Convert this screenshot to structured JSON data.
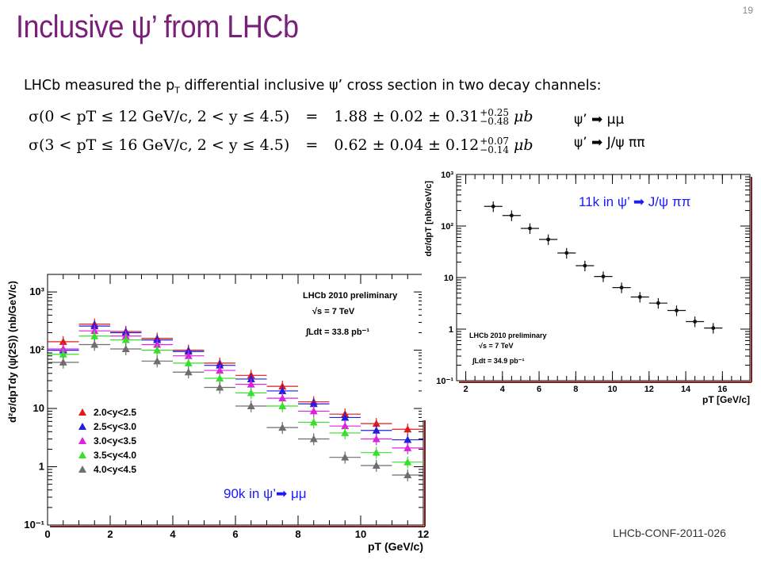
{
  "slide": {
    "number": "19",
    "title": "Inclusive ψ’ from LHCb",
    "intro_before_sub": "LHCb measured the p",
    "intro_sub": "T",
    "intro_after_sub": " differential inclusive ψ’ cross section in two decay channels:",
    "formula1_lhs": "σ(0 < pT ≤ 12 GeV/c, 2 < y ≤ 4.5)",
    "formula1_eq": "=",
    "formula1_value": "1.88 ± 0.02 ± 0.31",
    "formula1_up": "+0.25",
    "formula1_down": "−0.48",
    "formula1_unit": "μb",
    "formula2_lhs": "σ(3 < pT ≤ 16 GeV/c, 2 < y ≤ 4.5)",
    "formula2_eq": "=",
    "formula2_value": "0.62 ± 0.04 ± 0.12",
    "formula2_up": "+0.07",
    "formula2_down": "−0.14",
    "formula2_unit": "μb",
    "channel1": "ψ’ ➡ μμ",
    "channel2": "ψ’ ➡ J/ψ ππ",
    "conf_note": "LHCb-CONF-2011-026"
  },
  "colors": {
    "title": "#7a1f7a",
    "annotation_blue": "#1a1aff"
  },
  "chart_data": [
    {
      "type": "scatter",
      "plot": "left",
      "annotation": "90k in ψ’➡ μμ",
      "xlabel": "pT (GeV/c)",
      "ylabel": "d²σ/dpTdy (ψ(2S)) (nb/GeV/c)",
      "xlim": [
        0,
        12
      ],
      "ylim": [
        0.1,
        2000
      ],
      "log_y": true,
      "x_ticks": [
        "0",
        "2",
        "4",
        "6",
        "8",
        "10",
        "12"
      ],
      "y_ticks": [
        "10⁻¹",
        "1",
        "10",
        "10²",
        "10³"
      ],
      "legend_position": "lower-left",
      "info_title": "LHCb 2010 preliminary",
      "info_energy": "√s = 7 TeV",
      "info_lumi": "∫Ldt = 33.8 pb⁻¹",
      "x": [
        0.5,
        1.5,
        2.5,
        3.5,
        4.5,
        5.5,
        6.5,
        7.5,
        8.5,
        9.5,
        10.5,
        11.5
      ],
      "x_err": 0.5,
      "series": [
        {
          "name": "2.0<y<2.5",
          "color": "#e31a1c",
          "values": [
            140,
            280,
            210,
            160,
            100,
            60,
            37,
            24,
            13,
            8,
            5.5,
            4.4
          ]
        },
        {
          "name": "2.5<y<3.0",
          "color": "#1f1fe0",
          "values": [
            100,
            260,
            200,
            150,
            95,
            55,
            32,
            20,
            12,
            7,
            4.2,
            2.9
          ]
        },
        {
          "name": "3.0<y<3.5",
          "color": "#e020e0",
          "values": [
            105,
            215,
            175,
            125,
            80,
            45,
            26,
            15,
            9,
            5,
            3,
            2.1
          ]
        },
        {
          "name": "3.5<y<4.0",
          "color": "#39e02b",
          "values": [
            85,
            175,
            150,
            100,
            60,
            33,
            18.5,
            11,
            5.8,
            3.8,
            1.75,
            1.2
          ]
        },
        {
          "name": "4.0<y<4.5",
          "color": "#6e6e6e",
          "values": [
            62,
            125,
            105,
            65,
            42,
            23,
            11,
            4.7,
            3,
            1.45,
            1.05,
            0.72
          ]
        }
      ]
    },
    {
      "type": "scatter",
      "plot": "right",
      "annotation": "11k in ψ’ ➡ J/ψ ππ",
      "xlabel": "pT [GeV/c]",
      "ylabel": "dσ/dpT [nb/GeV/c]",
      "xlim": [
        1.5,
        17.5
      ],
      "ylim": [
        0.1,
        1000
      ],
      "log_y": true,
      "x_ticks": [
        "2",
        "4",
        "6",
        "8",
        "10",
        "12",
        "14",
        "16"
      ],
      "y_ticks": [
        "10⁻¹",
        "1",
        "10",
        "10²",
        "10³"
      ],
      "info_title": "LHCb 2010 preliminary",
      "info_energy": "√s = 7 TeV",
      "info_lumi": "∫Ldt = 34.9 pb⁻¹",
      "x": [
        3.5,
        4.5,
        5.5,
        6.5,
        7.5,
        8.5,
        9.5,
        10.5,
        11.5,
        12.5,
        13.5,
        14.5,
        15.5
      ],
      "x_err": 0.5,
      "values": [
        240,
        160,
        90,
        55,
        30,
        17,
        10.5,
        6.4,
        4.2,
        3.2,
        2.3,
        1.4,
        1.05
      ]
    }
  ]
}
